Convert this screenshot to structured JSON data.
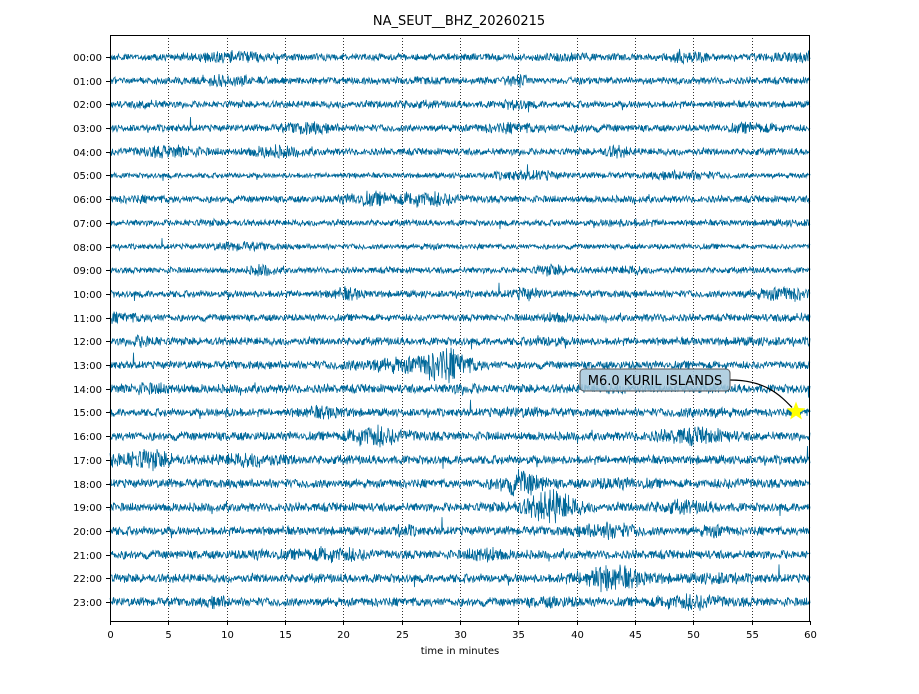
{
  "chart_data": {
    "type": "line",
    "title": "NA_SEUT__BHZ_20260215",
    "xlabel": "time in minutes",
    "ylabel": "",
    "xlim": [
      0,
      60
    ],
    "xticks": [
      "0",
      "5",
      "10",
      "15",
      "20",
      "25",
      "30",
      "35",
      "40",
      "45",
      "50",
      "55",
      "60"
    ],
    "yticks": [
      "00:00",
      "01:00",
      "02:00",
      "03:00",
      "04:00",
      "05:00",
      "06:00",
      "07:00",
      "08:00",
      "09:00",
      "10:00",
      "11:00",
      "12:00",
      "13:00",
      "14:00",
      "15:00",
      "16:00",
      "17:00",
      "18:00",
      "19:00",
      "20:00",
      "21:00",
      "22:00",
      "23:00"
    ],
    "grid": "vertical dotted every 5 minutes",
    "series_color": "#00689a",
    "row_relative_amplitude": [
      0.8,
      0.8,
      0.8,
      0.8,
      0.8,
      0.6,
      0.8,
      0.7,
      0.6,
      0.7,
      0.8,
      0.8,
      0.9,
      0.9,
      1.0,
      0.9,
      1.0,
      1.0,
      1.0,
      1.0,
      1.0,
      1.0,
      1.0,
      1.0
    ],
    "annotation": {
      "text": "M6.0 KURIL ISLANDS",
      "hour": "15:00",
      "minute": 58.8,
      "marker": "star",
      "marker_color": "#ffff00",
      "box_color": "#a6c8dc"
    }
  }
}
